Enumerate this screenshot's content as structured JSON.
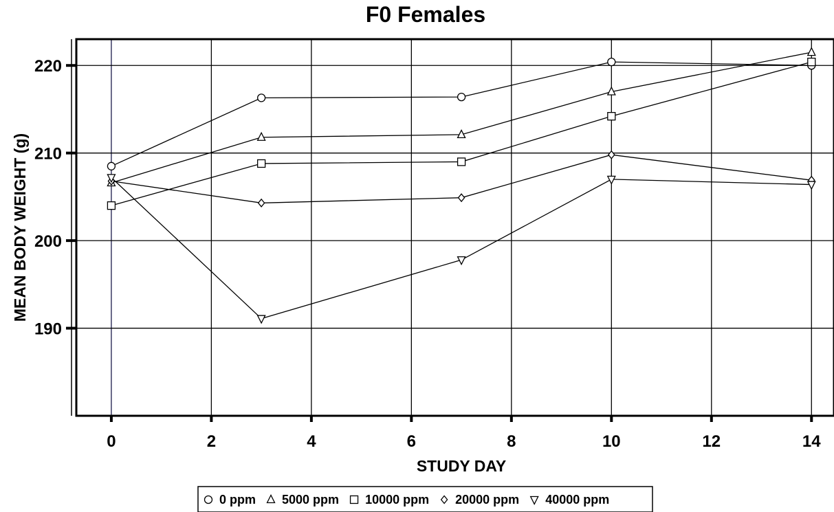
{
  "chart_data": {
    "type": "line",
    "title": "F0 Females",
    "xlabel": "STUDY DAY",
    "ylabel": "MEAN BODY WEIGHT (g)",
    "xlim": [
      -0.7,
      14.45
    ],
    "ylim": [
      180,
      223
    ],
    "x_ticks": [
      0,
      2,
      4,
      6,
      8,
      10,
      12,
      14
    ],
    "y_ticks": [
      190,
      200,
      210,
      220
    ],
    "grid": true,
    "legend_position": "bottom",
    "x": [
      0,
      3,
      7,
      10,
      14
    ],
    "series": [
      {
        "name": "0 ppm",
        "marker": "circle",
        "values": [
          208.5,
          216.3,
          216.4,
          220.4,
          220.0
        ]
      },
      {
        "name": "5000 ppm",
        "marker": "triangle-up",
        "values": [
          206.6,
          211.8,
          212.1,
          217.0,
          221.5
        ]
      },
      {
        "name": "10000 ppm",
        "marker": "square",
        "values": [
          204.0,
          208.8,
          209.0,
          214.2,
          220.4
        ]
      },
      {
        "name": "20000 ppm",
        "marker": "diamond",
        "values": [
          206.8,
          204.3,
          204.9,
          209.8,
          206.9
        ]
      },
      {
        "name": "40000 ppm",
        "marker": "triangle-down",
        "values": [
          207.2,
          191.1,
          197.8,
          207.0,
          206.4
        ]
      }
    ]
  }
}
